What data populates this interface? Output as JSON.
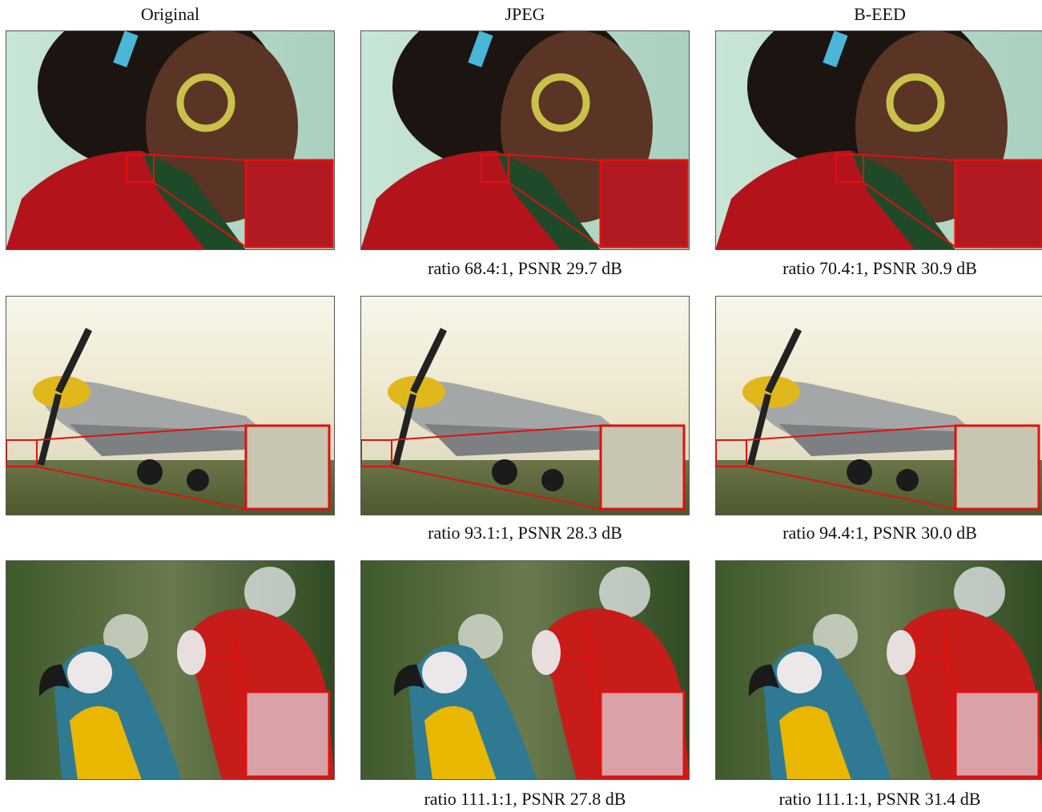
{
  "column_headers": [
    "Original",
    "JPEG",
    "B-EED"
  ],
  "rows": [
    {
      "captions": [
        "ratio 68.4:1, PSNR 29.7 dB",
        "ratio 70.4:1, PSNR 30.9 dB"
      ]
    },
    {
      "captions": [
        "ratio 93.1:1, PSNR 28.3 dB",
        "ratio 94.4:1, PSNR 30.0 dB"
      ]
    },
    {
      "captions": [
        "ratio 111.1:1, PSNR 27.8 dB",
        "ratio 111.1:1, PSNR 31.4 dB"
      ]
    }
  ]
}
